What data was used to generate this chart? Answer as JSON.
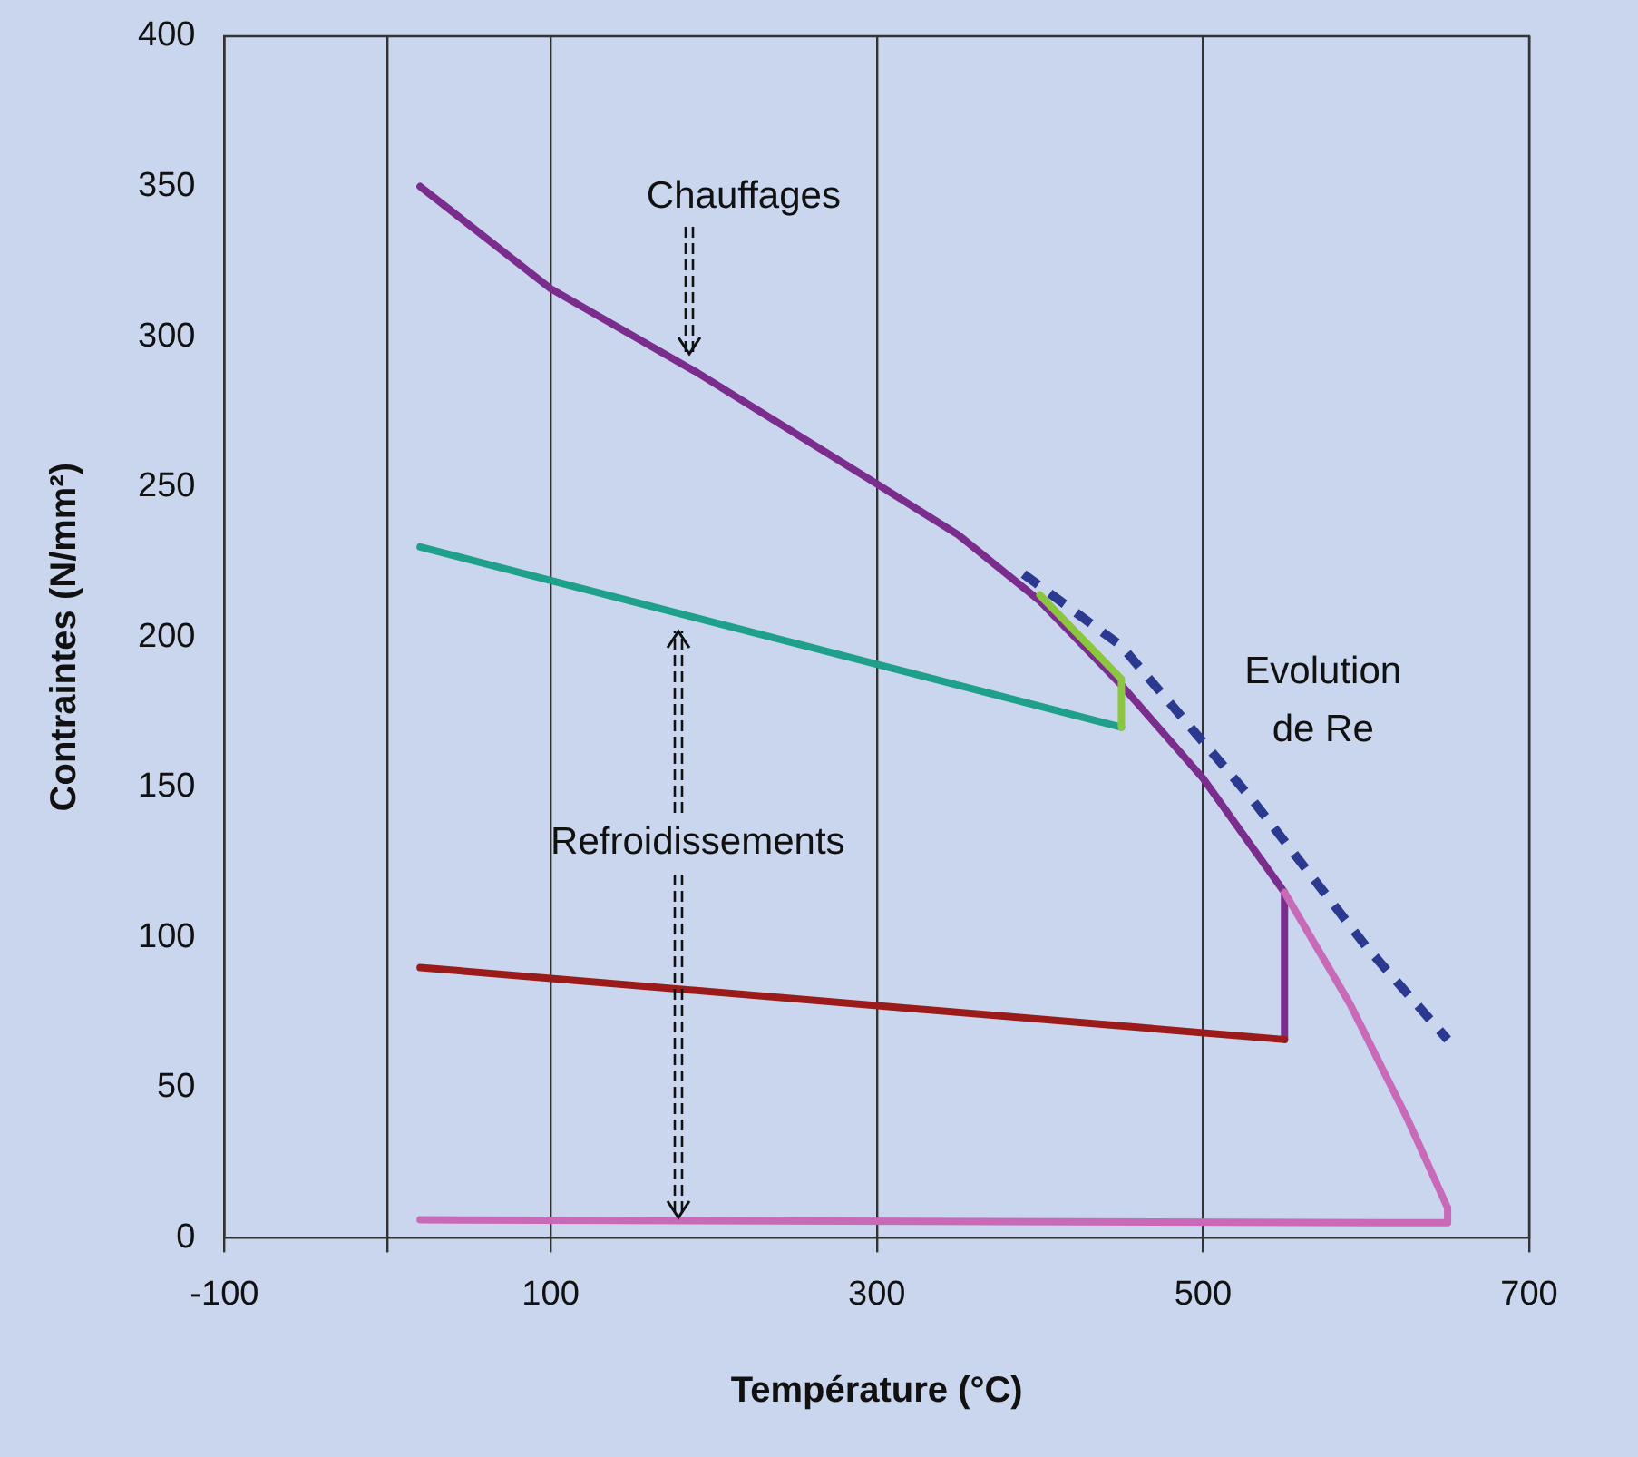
{
  "chart_data": {
    "type": "line",
    "xlabel": "Température (°C)",
    "ylabel": "Contraintes (N/mm²)",
    "xlim": [
      -100,
      700
    ],
    "xticks": [
      -100,
      {
        "value": 0,
        "label": null
      },
      100,
      300,
      500,
      700
    ],
    "ylim": [
      0,
      400
    ],
    "yticks": [
      0,
      50,
      100,
      150,
      200,
      250,
      300,
      350,
      400
    ],
    "grid": "x",
    "legend": false,
    "marker": "none",
    "series": [
      {
        "color": "#8cc63f",
        "x": [
          400,
          450,
          450
        ],
        "values": [
          214,
          186,
          170
        ]
      },
      {
        "color": "#1fa08a",
        "x": [
          20,
          450
        ],
        "values": [
          230,
          170
        ]
      },
      {
        "color": "#9b1b1b",
        "x": [
          20,
          550
        ],
        "values": [
          90,
          66
        ]
      },
      {
        "color": "#c86ab8",
        "x": [
          550,
          590,
          625,
          650,
          650,
          20
        ],
        "values": [
          115,
          78,
          40,
          10,
          5,
          6
        ]
      },
      {
        "color": "#7b2d8e",
        "x": [
          20,
          100,
          190,
          300,
          350,
          400,
          450,
          500,
          550,
          550
        ],
        "values": [
          350,
          316,
          288,
          251,
          234,
          212,
          184,
          153,
          115,
          66
        ]
      },
      {
        "color": "#2b3990",
        "line_style": "dashed",
        "x": [
          390,
          450,
          530,
          600,
          650
        ],
        "values": [
          221,
          197,
          146,
          97,
          66
        ]
      }
    ],
    "annotations": [
      {
        "text": "Chauffages",
        "x": 185,
        "y": 294
      },
      {
        "text": "Refroidissements",
        "x": 178,
        "y": 7
      },
      "Evolution de Re"
    ]
  }
}
